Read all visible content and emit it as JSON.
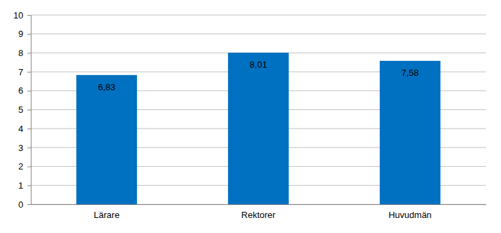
{
  "chart_data": {
    "type": "bar",
    "categories": [
      "Lärare",
      "Rektorer",
      "Huvudmän"
    ],
    "values": [
      6.83,
      8.01,
      7.58
    ],
    "value_labels": [
      "6,83",
      "8,01",
      "7,58"
    ],
    "color": "#0070c0",
    "ylim": [
      0,
      10
    ],
    "yticks": [
      0,
      1,
      2,
      3,
      4,
      5,
      6,
      7,
      8,
      9,
      10
    ],
    "grid": true,
    "data_labels": true
  }
}
